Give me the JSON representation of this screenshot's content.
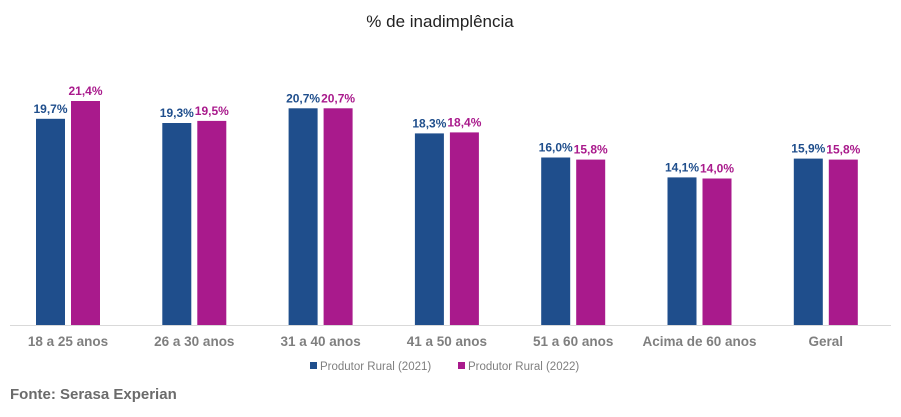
{
  "chart_data": {
    "type": "bar",
    "title": "% de inadimplência",
    "categories": [
      "18 a 25 anos",
      "26 a 30 anos",
      "31 a 40 anos",
      "41 a 50 anos",
      "51 a 60 anos",
      "Acima de 60 anos",
      "Geral"
    ],
    "series": [
      {
        "name": "Produtor Rural (2021)",
        "color": "#1f4e8c",
        "values": [
          19.7,
          19.3,
          20.7,
          18.3,
          16.0,
          14.1,
          15.9
        ],
        "labels": [
          "19,7%",
          "19,3%",
          "20,7%",
          "18,3%",
          "16,0%",
          "14,1%",
          "15,9%"
        ]
      },
      {
        "name": "Produtor Rural (2022)",
        "color": "#a91a8c",
        "values": [
          21.4,
          19.5,
          20.7,
          18.4,
          15.8,
          14.0,
          15.8
        ],
        "labels": [
          "21,4%",
          "19,5%",
          "20,7%",
          "18,4%",
          "15,8%",
          "14,0%",
          "15,8%"
        ]
      }
    ],
    "ylim": [
      0,
      21.4
    ],
    "grid": false,
    "legend": "bottom-center",
    "source": "Fonte: Serasa Experian"
  }
}
